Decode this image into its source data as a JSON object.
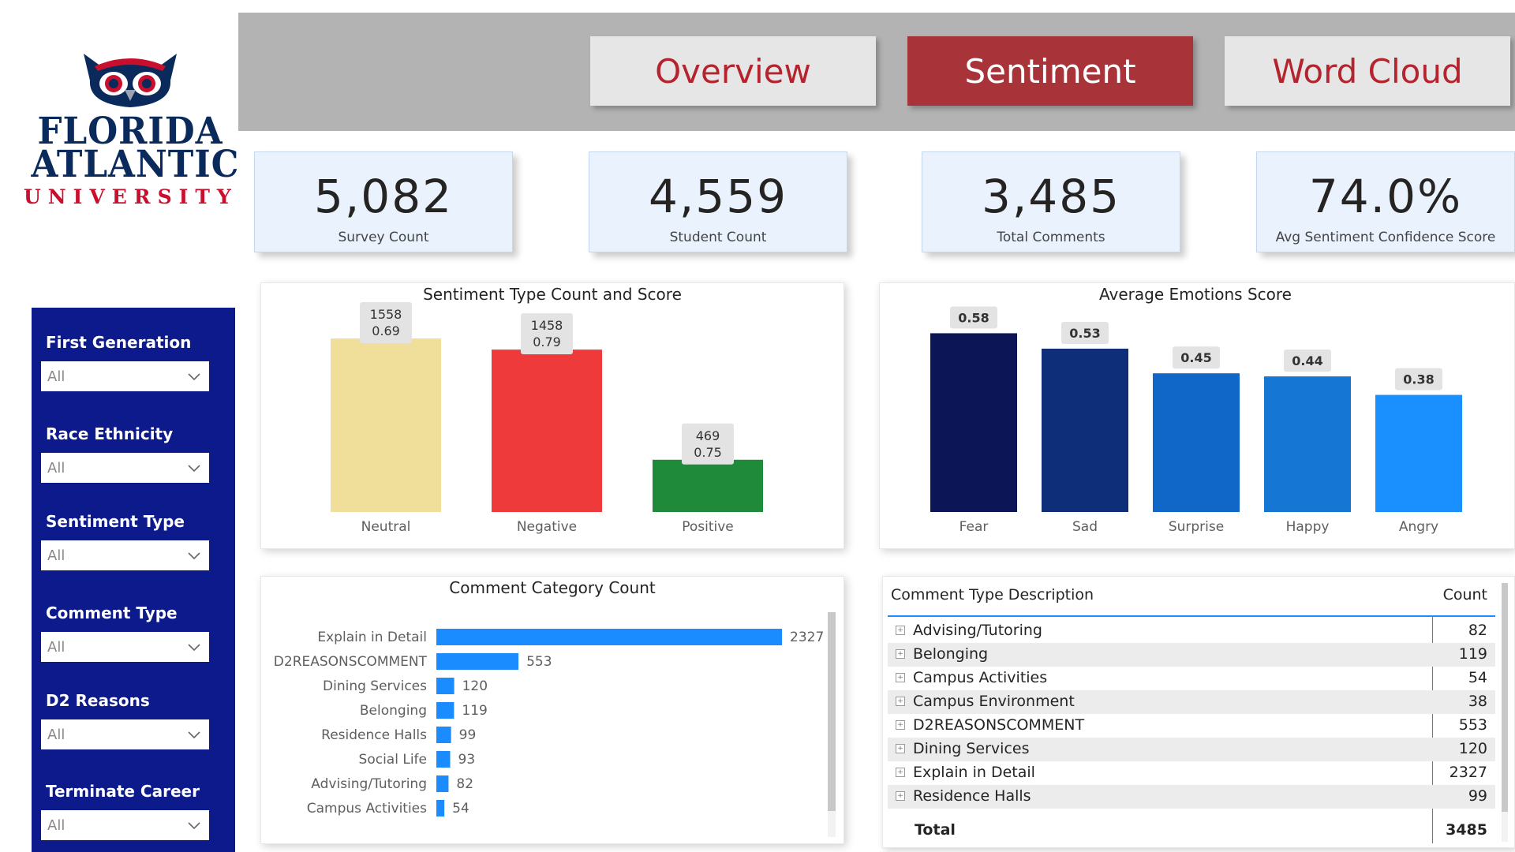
{
  "logo": {
    "line1": "FLORIDA",
    "line2": "ATLANTIC",
    "line3": "UNIVERSITY",
    "icon": "owl-icon",
    "colors": {
      "navy": "#0b2a5c",
      "red": "#c8102e"
    }
  },
  "nav": {
    "tabs": [
      {
        "label": "Overview",
        "active": false
      },
      {
        "label": "Sentiment",
        "active": true
      },
      {
        "label": "Word Cloud",
        "active": false
      }
    ],
    "colors": {
      "active_bg": "#a8343a",
      "inactive_bg": "#e6e6e6",
      "inactive_text": "#b3242e",
      "bar_bg": "#b3b3b3"
    }
  },
  "kpis": [
    {
      "value": "5,082",
      "label": "Survey Count"
    },
    {
      "value": "4,559",
      "label": "Student Count"
    },
    {
      "value": "3,485",
      "label": "Total Comments"
    },
    {
      "value": "74.0%",
      "label": "Avg Sentiment Confidence Score"
    }
  ],
  "slicers": [
    {
      "title": "First Generation",
      "value": "All"
    },
    {
      "title": "Race Ethnicity",
      "value": "All"
    },
    {
      "title": "Sentiment Type",
      "value": "All"
    },
    {
      "title": "Comment Type",
      "value": "All"
    },
    {
      "title": "D2 Reasons",
      "value": "All"
    },
    {
      "title": "Terminate Career",
      "value": "All"
    }
  ],
  "chart_data": [
    {
      "type": "bar",
      "title": "Sentiment Type Count and Score",
      "categories": [
        "Neutral",
        "Negative",
        "Positive"
      ],
      "series": [
        {
          "name": "Count",
          "values": [
            1558,
            1458,
            469
          ]
        },
        {
          "name": "Score",
          "values": [
            0.69,
            0.79,
            0.75
          ]
        }
      ],
      "colors": [
        "#efdf9b",
        "#ee3a3a",
        "#1f8a3a"
      ],
      "ylim": [
        0,
        1700
      ]
    },
    {
      "type": "bar",
      "title": "Average Emotions Score",
      "categories": [
        "Fear",
        "Sad",
        "Surprise",
        "Happy",
        "Angry"
      ],
      "values": [
        0.58,
        0.53,
        0.45,
        0.44,
        0.38
      ],
      "colors": [
        "#0c1657",
        "#0f2e7a",
        "#1067c8",
        "#1676d3",
        "#1a90ff"
      ],
      "ylim": [
        0,
        0.64
      ]
    },
    {
      "type": "bar",
      "orientation": "horizontal",
      "title": "Comment Category Count",
      "categories": [
        "Explain in Detail",
        "D2REASONSCOMMENT",
        "Dining Services",
        "Belonging",
        "Residence Halls",
        "Social Life",
        "Advising/Tutoring",
        "Campus Activities"
      ],
      "values": [
        2327,
        553,
        120,
        119,
        99,
        93,
        82,
        54
      ],
      "colors": [
        "#1a8cff"
      ],
      "xlim": [
        0,
        2327
      ]
    }
  ],
  "table": {
    "headers": [
      "Comment Type Description",
      "Count"
    ],
    "rows": [
      {
        "name": "Advising/Tutoring",
        "count": "82"
      },
      {
        "name": "Belonging",
        "count": "119"
      },
      {
        "name": "Campus Activities",
        "count": "54"
      },
      {
        "name": "Campus Environment",
        "count": "38"
      },
      {
        "name": "D2REASONSCOMMENT",
        "count": "553"
      },
      {
        "name": "Dining Services",
        "count": "120"
      },
      {
        "name": "Explain in Detail",
        "count": "2327"
      },
      {
        "name": "Residence Halls",
        "count": "99"
      }
    ],
    "total_label": "Total",
    "total_value": "3485",
    "expand_icon": "plus-square-icon"
  }
}
